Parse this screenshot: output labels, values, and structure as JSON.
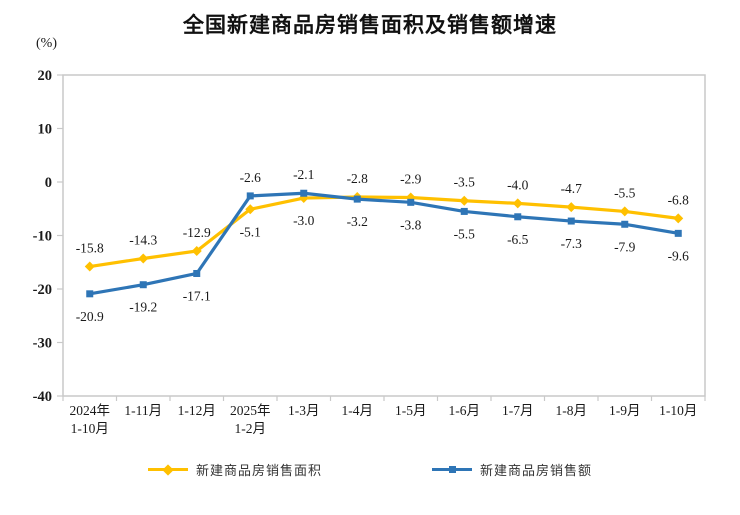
{
  "title": "全国新建商品房销售面积及销售额增速",
  "chart_data": {
    "type": "line",
    "title": "全国新建商品房销售面积及销售额增速",
    "ylabel": "(%)",
    "categories": [
      "2024年\n1-10月",
      "1-11月",
      "1-12月",
      "2025年\n1-2月",
      "1-3月",
      "1-4月",
      "1-5月",
      "1-6月",
      "1-7月",
      "1-8月",
      "1-9月",
      "1-10月"
    ],
    "series": [
      {
        "name": "新建商品房销售面积",
        "color": "#FFC000",
        "marker": "diamond",
        "values": [
          -15.8,
          -14.3,
          -12.9,
          -5.1,
          -3.0,
          -2.8,
          -2.9,
          -3.5,
          -4.0,
          -4.7,
          -5.5,
          -6.8
        ]
      },
      {
        "name": "新建商品房销售额",
        "color": "#2E75B6",
        "marker": "square",
        "values": [
          -20.9,
          -19.2,
          -17.1,
          -2.6,
          -2.1,
          -3.2,
          -3.8,
          -5.5,
          -6.5,
          -7.3,
          -7.9,
          -9.6
        ]
      }
    ],
    "ylim": [
      -40,
      20
    ],
    "yticks": [
      20,
      10,
      0,
      -10,
      -20,
      -30,
      -40
    ],
    "grid": false,
    "legend_position": "bottom",
    "axis_color": "#c9c9c9",
    "label_color": "#1a1a1a"
  }
}
